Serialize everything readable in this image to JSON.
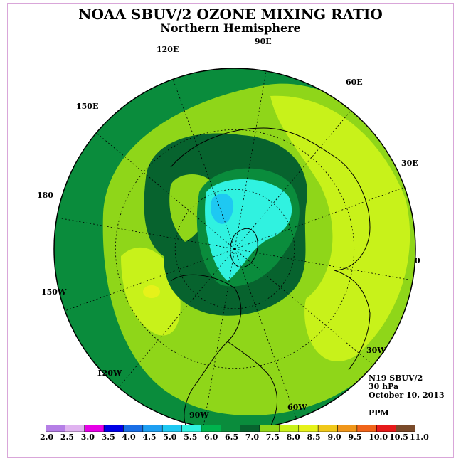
{
  "title": "NOAA SBUV/2 OZONE MIXING RATIO",
  "subtitle": "Northern Hemisphere",
  "longitude_labels": [
    "90E",
    "60E",
    "30E",
    "0",
    "30W",
    "60W",
    "90W",
    "120W",
    "150W",
    "180",
    "150E",
    "120E"
  ],
  "info": {
    "instrument": "N19 SBUV/2",
    "level": "30 hPa",
    "date": "October 10, 2013",
    "units": "PPM"
  },
  "colorbar": {
    "ticks": [
      "2.0",
      "2.5",
      "3.0",
      "3.5",
      "4.0",
      "4.5",
      "5.0",
      "5.5",
      "6.0",
      "6.5",
      "7.0",
      "7.5",
      "8.0",
      "8.5",
      "9.0",
      "9.5",
      "10.0",
      "10.5",
      "11.0"
    ],
    "colors": [
      "#b57fe6",
      "#e0b3f0",
      "#e600e6",
      "#0000e6",
      "#1a6fe6",
      "#1e9ff2",
      "#1ec8f2",
      "#30f2e0",
      "#00b34d",
      "#0a8c3c",
      "#07632e",
      "#8fd619",
      "#c8f21a",
      "#e6f21a",
      "#f0c81a",
      "#f0961a",
      "#f0641a",
      "#e61a1a",
      "#7a4a2a"
    ]
  },
  "map_colors": {
    "ocean_outer": "#0a8c3c",
    "band_7_0": "#07632e",
    "band_7_5": "#8fd619",
    "band_8_0": "#c8f21a",
    "band_8_5": "#e6f21a",
    "band_5_5": "#30f2e0",
    "band_5_0": "#1ec8f2"
  }
}
